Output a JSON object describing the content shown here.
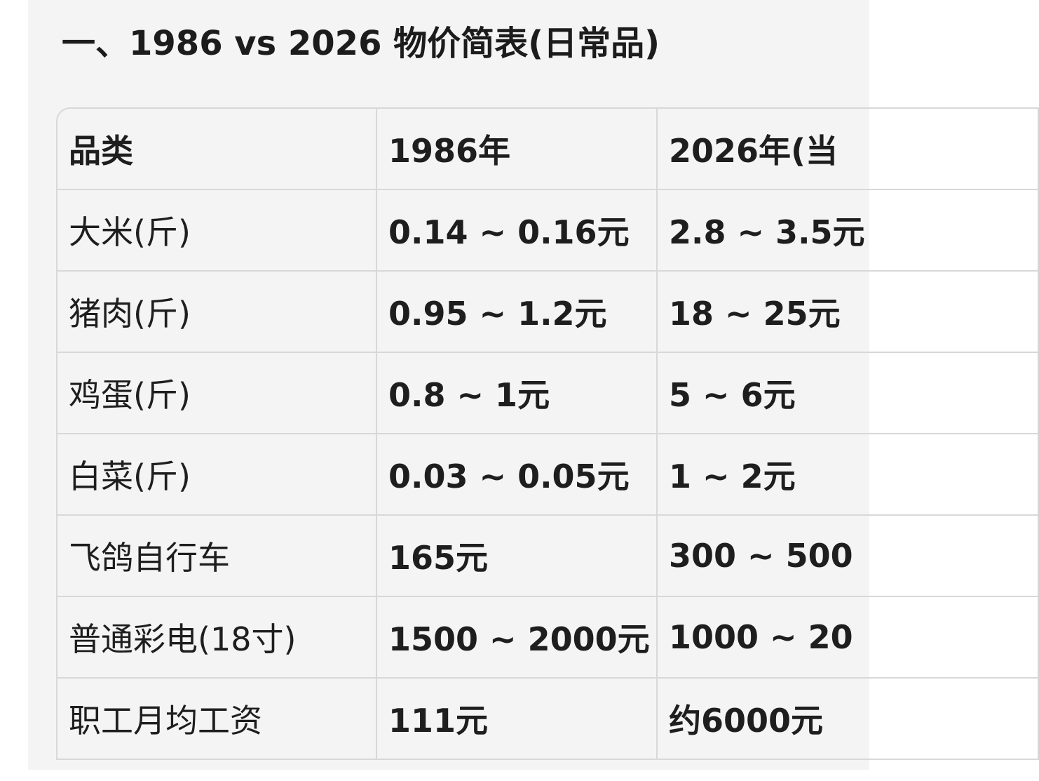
{
  "title": "一、1986 vs 2026 物价简表(日常品)",
  "table": {
    "headers": [
      "品类",
      "1986年",
      "2026年(当"
    ],
    "rows": [
      [
        "大米(斤)",
        "0.14 ~ 0.16元",
        "2.8 ~ 3.5元"
      ],
      [
        "猪肉(斤)",
        "0.95 ~ 1.2元",
        "18 ~ 25元"
      ],
      [
        "鸡蛋(斤)",
        "0.8 ~ 1元",
        "5 ~ 6元"
      ],
      [
        "白菜(斤)",
        "0.03 ~ 0.05元",
        "1 ~ 2元"
      ],
      [
        "飞鸽自行车",
        "165元",
        "300 ~ 500"
      ],
      [
        "普通彩电(18寸)",
        "1500 ~ 2000元",
        "1000 ~ 20"
      ],
      [
        "职工月均工资",
        "111元",
        "约6000元"
      ]
    ]
  }
}
